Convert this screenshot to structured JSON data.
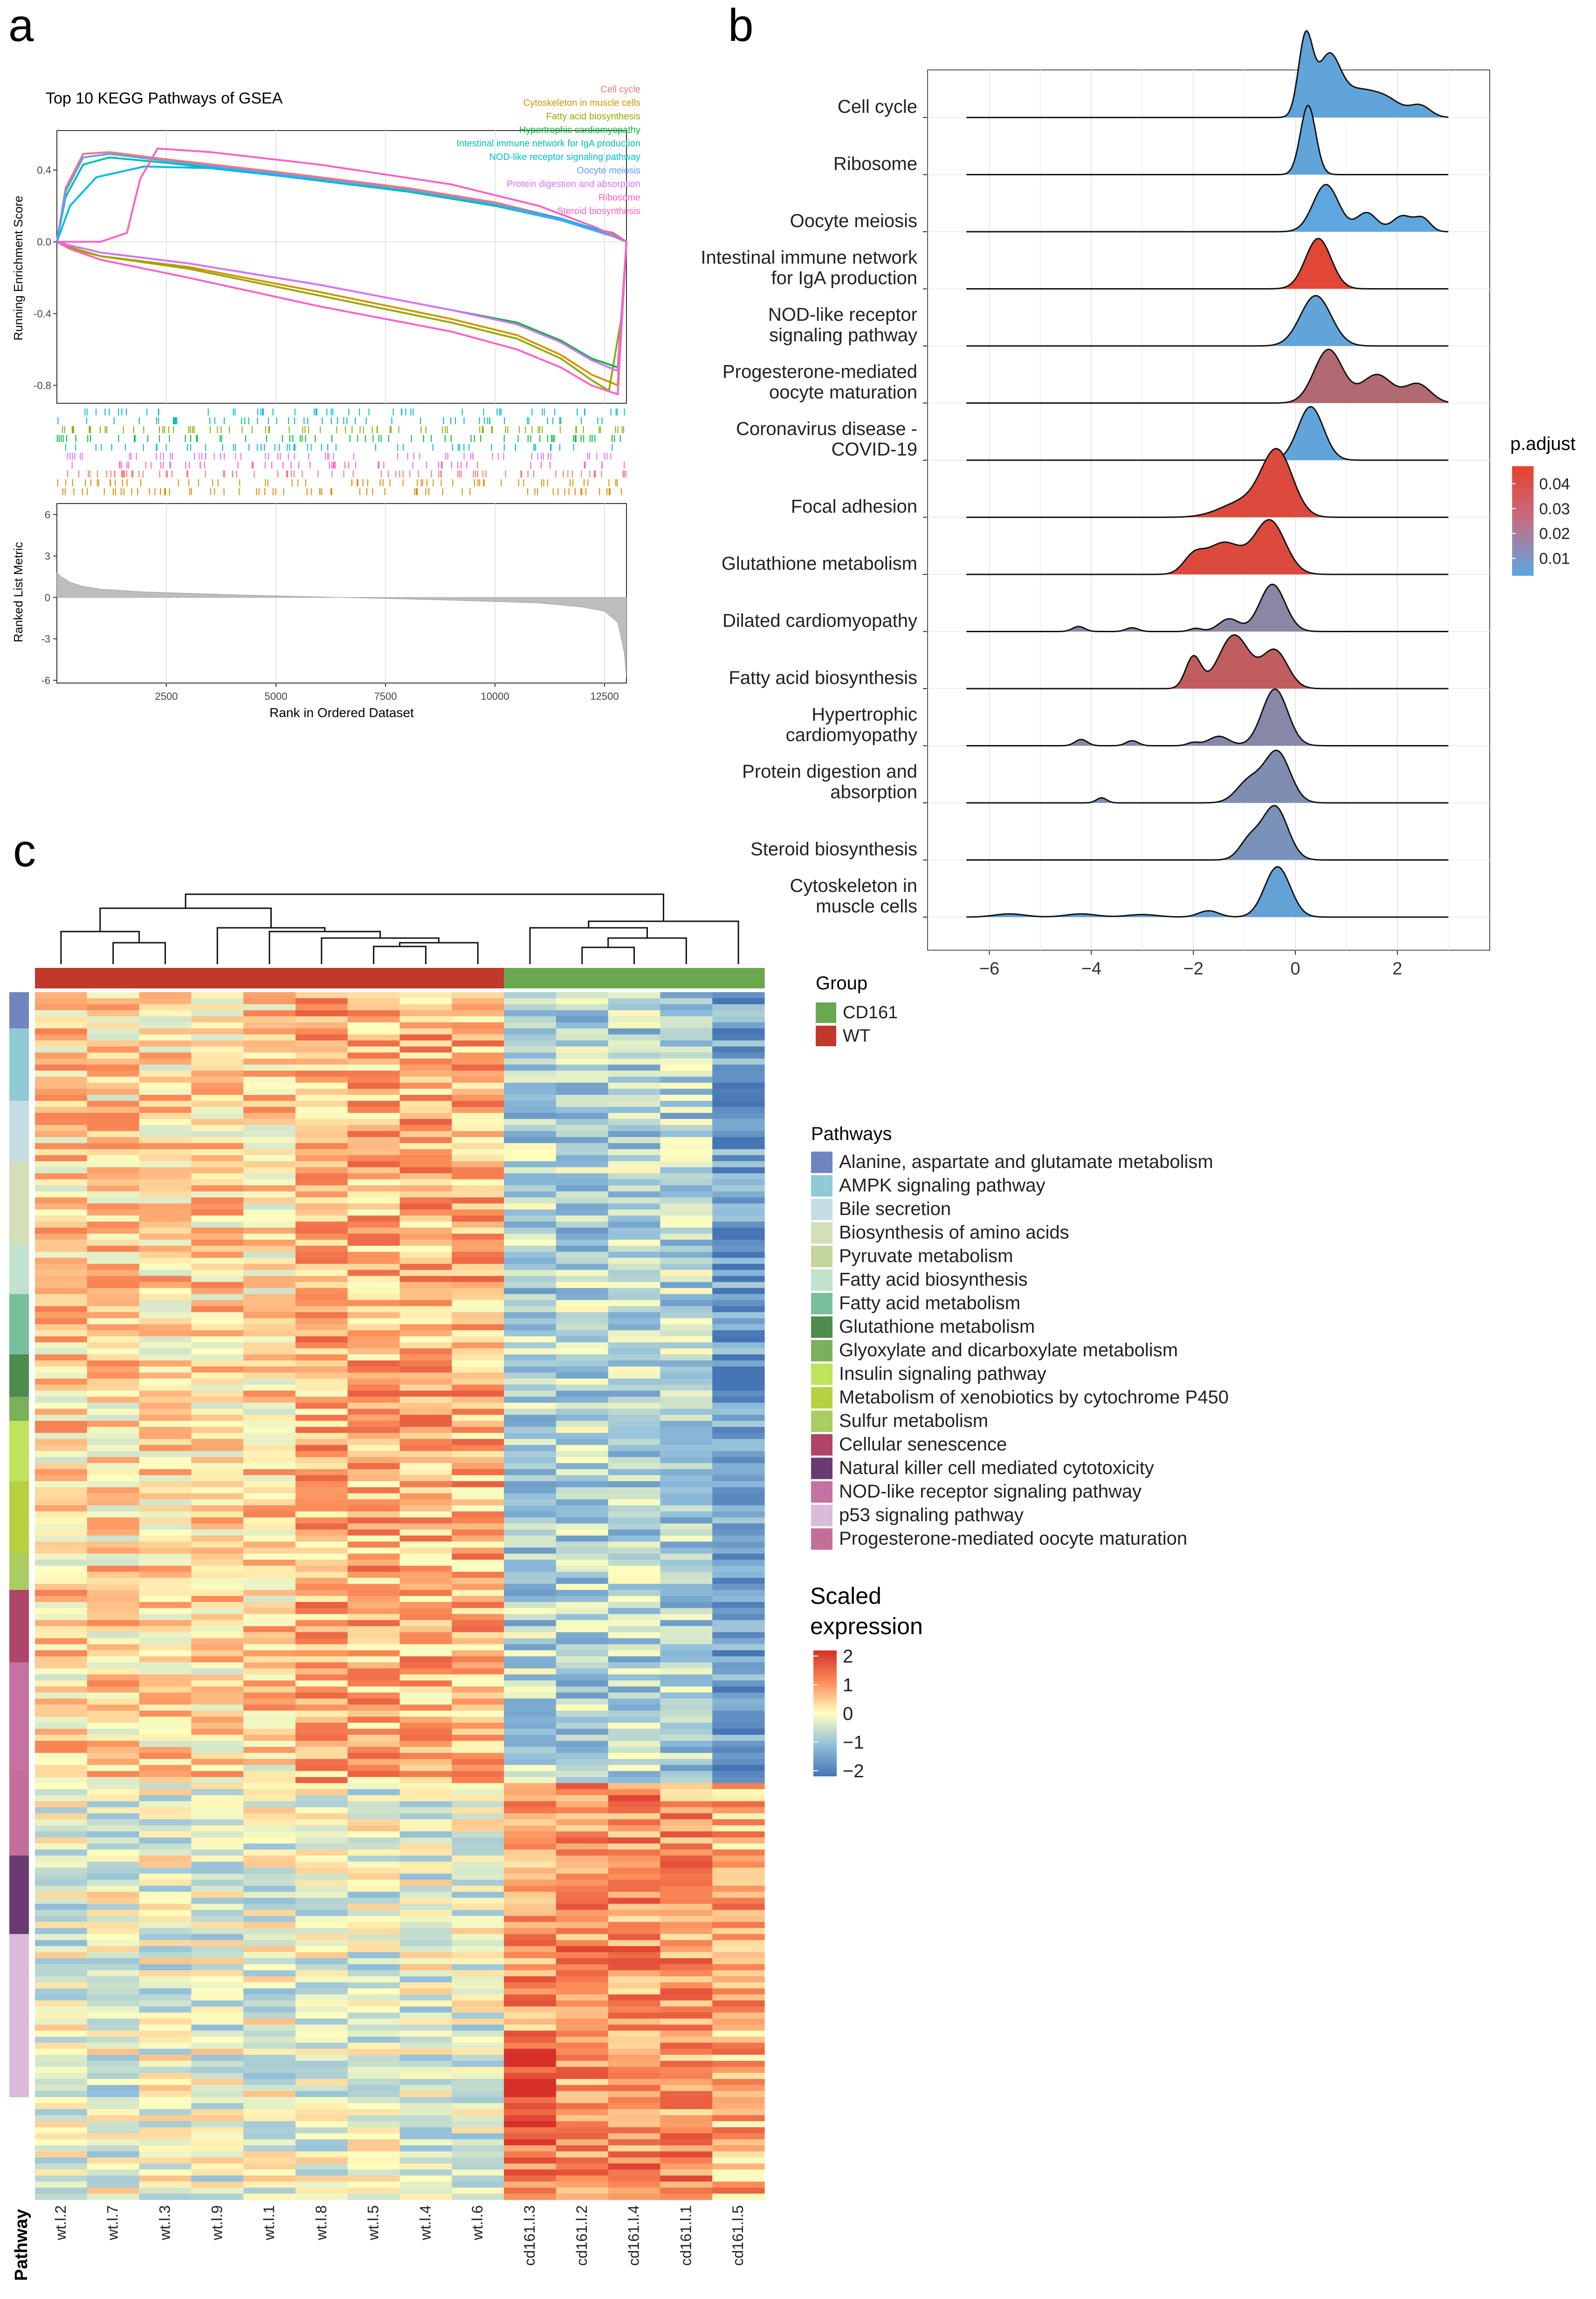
{
  "panel_labels": {
    "a": "a",
    "b": "b",
    "c": "c"
  },
  "chart_data": [
    {
      "id": "gsea",
      "type": "line",
      "title": "Top 10 KEGG Pathways of GSEA",
      "ylabel": "Running Enrichment Score",
      "ylim": [
        -0.9,
        0.62
      ],
      "yticks": [
        "0.4",
        "0.0",
        "-0.4",
        "-0.8"
      ],
      "xlim": [
        0,
        13000
      ],
      "series": [
        {
          "name": "Cell cycle",
          "color": "#f8766d",
          "x": [
            0,
            200,
            600,
            1200,
            2500,
            5000,
            8000,
            10000,
            11500,
            12300,
            12700,
            13000
          ],
          "y": [
            0,
            0.3,
            0.49,
            0.5,
            0.46,
            0.39,
            0.3,
            0.22,
            0.13,
            0.07,
            0.05,
            0
          ]
        },
        {
          "name": "Cytoskeleton in muscle cells",
          "color": "#d39200",
          "x": [
            0,
            300,
            1000,
            3000,
            6000,
            9000,
            10500,
            11500,
            12200,
            12800,
            13000
          ],
          "y": [
            0,
            -0.04,
            -0.08,
            -0.14,
            -0.28,
            -0.43,
            -0.52,
            -0.63,
            -0.74,
            -0.8,
            0
          ]
        },
        {
          "name": "Fatty acid biosynthesis",
          "color": "#93aa00",
          "x": [
            0,
            300,
            1000,
            3000,
            6000,
            9000,
            10500,
            11500,
            12200,
            12600,
            12900,
            13000
          ],
          "y": [
            0,
            -0.03,
            -0.08,
            -0.15,
            -0.3,
            -0.45,
            -0.54,
            -0.65,
            -0.77,
            -0.83,
            -0.4,
            0
          ]
        },
        {
          "name": "Hypertrophic cardiomyopathy",
          "color": "#00ba38",
          "x": [
            0,
            300,
            1000,
            3000,
            6000,
            9000,
            10500,
            11500,
            12200,
            12800,
            13000
          ],
          "y": [
            0,
            -0.02,
            -0.06,
            -0.12,
            -0.24,
            -0.38,
            -0.45,
            -0.55,
            -0.65,
            -0.7,
            0
          ]
        },
        {
          "name": "Intestinal immune network for IgA production",
          "color": "#00c19f",
          "x": [
            0,
            200,
            600,
            1200,
            2500,
            5000,
            8000,
            10000,
            11500,
            12300,
            12700,
            13000
          ],
          "y": [
            0,
            0.25,
            0.43,
            0.47,
            0.44,
            0.37,
            0.28,
            0.2,
            0.12,
            0.06,
            0.03,
            0
          ]
        },
        {
          "name": "NOD-like receptor signaling pathway",
          "color": "#00b9e3",
          "x": [
            0,
            300,
            900,
            2000,
            3500,
            5000,
            8000,
            10000,
            11500,
            12300,
            12700,
            13000
          ],
          "y": [
            0,
            0.2,
            0.36,
            0.42,
            0.41,
            0.37,
            0.29,
            0.21,
            0.13,
            0.07,
            0.04,
            0
          ]
        },
        {
          "name": "Oocyte meiosis",
          "color": "#619cff",
          "x": [
            0,
            200,
            600,
            1200,
            2500,
            5000,
            8000,
            10000,
            11500,
            12300,
            12700,
            13000
          ],
          "y": [
            0,
            0.28,
            0.47,
            0.49,
            0.45,
            0.38,
            0.29,
            0.21,
            0.12,
            0.06,
            0.03,
            0
          ]
        },
        {
          "name": "Protein digestion and absorption",
          "color": "#db72fb",
          "x": [
            0,
            300,
            1000,
            3000,
            6000,
            9000,
            10500,
            11500,
            12200,
            12800,
            13000
          ],
          "y": [
            0,
            -0.02,
            -0.06,
            -0.12,
            -0.24,
            -0.38,
            -0.46,
            -0.56,
            -0.66,
            -0.72,
            0
          ]
        },
        {
          "name": "Ribosome",
          "color": "#ff61c3",
          "x": [
            0,
            1000,
            1600,
            1900,
            2300,
            3500,
            6000,
            9000,
            11000,
            12300,
            13000
          ],
          "y": [
            0,
            0,
            0.05,
            0.35,
            0.52,
            0.5,
            0.43,
            0.32,
            0.2,
            0.08,
            0
          ]
        },
        {
          "name": "Steroid biosynthesis",
          "color": "#ff61c3",
          "x": [
            0,
            300,
            1000,
            3000,
            6000,
            9000,
            10500,
            11500,
            12200,
            12800,
            13000
          ],
          "y": [
            0,
            -0.04,
            -0.1,
            -0.2,
            -0.36,
            -0.5,
            -0.6,
            -0.7,
            -0.8,
            -0.85,
            0
          ]
        }
      ]
    },
    {
      "id": "ranked",
      "type": "area",
      "xlabel": "Rank in Ordered Dataset",
      "ylabel": "Ranked List Metric",
      "xticks": [
        2500,
        5000,
        7500,
        10000,
        12500
      ],
      "xlim": [
        0,
        13000
      ],
      "ylim": [
        -6.2,
        6.8
      ],
      "yticks": [
        6,
        3,
        0,
        -3,
        -6
      ],
      "x": [
        0,
        100,
        300,
        600,
        1000,
        2000,
        4000,
        6500,
        9000,
        11000,
        12000,
        12500,
        12800,
        12950,
        13000
      ],
      "y": [
        1.8,
        1.5,
        1.1,
        0.8,
        0.6,
        0.4,
        0.2,
        0,
        -0.2,
        -0.4,
        -0.7,
        -1,
        -1.8,
        -4,
        -5.8
      ]
    },
    {
      "id": "ridge",
      "type": "area",
      "legend_title": "p.adjust",
      "legend_ticks": [
        "0.04",
        "0.03",
        "0.02",
        "0.01"
      ],
      "legend_range": [
        0.003,
        0.047
      ],
      "xlim": [
        -6.8,
        3.4
      ],
      "xticks": [
        -6,
        -4,
        -2,
        0,
        2
      ],
      "rows": [
        {
          "label": "Cell cycle",
          "padj": 0.005,
          "peaks": [
            [
              0.2,
              0.14,
              1.25
            ],
            [
              0.65,
              0.22,
              0.9
            ],
            [
              1.2,
              0.35,
              0.4
            ],
            [
              1.8,
              0.3,
              0.25
            ],
            [
              2.45,
              0.2,
              0.18
            ]
          ]
        },
        {
          "label": "Ribosome",
          "padj": 0.005,
          "peaks": [
            [
              0.25,
              0.15,
              1.1
            ]
          ]
        },
        {
          "label": "Oocyte meiosis",
          "padj": 0.004,
          "peaks": [
            [
              0.6,
              0.25,
              0.75
            ],
            [
              1.4,
              0.2,
              0.3
            ],
            [
              2.1,
              0.2,
              0.25
            ],
            [
              2.5,
              0.15,
              0.2
            ]
          ]
        },
        {
          "label": "Intestinal immune network\nfor IgA production",
          "padj": 0.045,
          "peaks": [
            [
              0.45,
              0.25,
              0.8
            ]
          ]
        },
        {
          "label": "NOD-like receptor\nsignaling pathway",
          "padj": 0.005,
          "peaks": [
            [
              0.4,
              0.3,
              0.8
            ]
          ]
        },
        {
          "label": "Progesterone-mediated\noocyte maturation",
          "padj": 0.03,
          "peaks": [
            [
              0.65,
              0.28,
              0.85
            ],
            [
              1.6,
              0.3,
              0.45
            ],
            [
              2.4,
              0.25,
              0.3
            ]
          ]
        },
        {
          "label": "Coronavirus disease -\nCOVID-19",
          "padj": 0.005,
          "peaks": [
            [
              0.3,
              0.25,
              0.85
            ]
          ]
        },
        {
          "label": "Focal adhesion",
          "padj": 0.043,
          "peaks": [
            [
              -0.35,
              0.3,
              1.0
            ],
            [
              -1.0,
              0.45,
              0.25
            ]
          ]
        },
        {
          "label": "Glutathione metabolism",
          "padj": 0.043,
          "peaks": [
            [
              -0.5,
              0.3,
              0.85
            ],
            [
              -1.4,
              0.35,
              0.5
            ],
            [
              -2,
              0.2,
              0.25
            ]
          ]
        },
        {
          "label": "Dilated cardiomyopathy",
          "padj": 0.018,
          "peaks": [
            [
              -0.45,
              0.25,
              0.75
            ],
            [
              -1.3,
              0.2,
              0.2
            ],
            [
              -4.25,
              0.12,
              0.08
            ],
            [
              -3.2,
              0.12,
              0.06
            ],
            [
              -1.95,
              0.12,
              0.05
            ]
          ]
        },
        {
          "label": "Fatty acid biosynthesis",
          "padj": 0.035,
          "peaks": [
            [
              -1.2,
              0.3,
              0.85
            ],
            [
              -0.4,
              0.25,
              0.6
            ],
            [
              -2,
              0.15,
              0.5
            ]
          ]
        },
        {
          "label": "Hypertrophic\ncardiomyopathy",
          "padj": 0.017,
          "peaks": [
            [
              -0.4,
              0.25,
              0.9
            ],
            [
              -1.5,
              0.2,
              0.15
            ],
            [
              -4.2,
              0.12,
              0.1
            ],
            [
              -3.2,
              0.12,
              0.08
            ],
            [
              -2,
              0.12,
              0.05
            ]
          ]
        },
        {
          "label": "Protein digestion and\nabsorption",
          "padj": 0.015,
          "peaks": [
            [
              -0.35,
              0.25,
              0.8
            ],
            [
              -0.9,
              0.25,
              0.35
            ],
            [
              -3.8,
              0.1,
              0.08
            ]
          ]
        },
        {
          "label": "Steroid biosynthesis",
          "padj": 0.013,
          "peaks": [
            [
              -0.4,
              0.25,
              0.85
            ],
            [
              -0.9,
              0.2,
              0.3
            ]
          ]
        },
        {
          "label": "Cytoskeleton in\nmuscle cells",
          "padj": 0.006,
          "peaks": [
            [
              -0.35,
              0.25,
              0.8
            ],
            [
              -1.7,
              0.2,
              0.1
            ],
            [
              -5.6,
              0.3,
              0.05
            ],
            [
              -4.2,
              0.3,
              0.05
            ],
            [
              -3,
              0.3,
              0.04
            ]
          ]
        }
      ]
    },
    {
      "id": "heatmap",
      "type": "heatmap",
      "columns": [
        "wt.l.2",
        "wt.l.7",
        "wt.l.3",
        "wt.l.9",
        "wt.l.1",
        "wt.l.8",
        "wt.l.5",
        "wt.l.4",
        "wt.l.6",
        "cd161.l.3",
        "cd161.l.2",
        "cd161.l.4",
        "cd161.l.1",
        "cd161.l.5"
      ],
      "column_groups": [
        "WT",
        "WT",
        "WT",
        "WT",
        "WT",
        "WT",
        "WT",
        "WT",
        "WT",
        "CD161",
        "CD161",
        "CD161",
        "CD161",
        "CD161"
      ],
      "group_colors": {
        "CD161": "#6aa84f",
        "WT": "#c0392b"
      },
      "group_legend_title": "Group",
      "group_legend": [
        "CD161",
        "WT"
      ],
      "pathway_axis_label": "Pathway",
      "pathway_legend_title": "Pathways",
      "pathways": [
        {
          "name": "Alanine, aspartate and glutamate metabolism",
          "color": "#7085c0"
        },
        {
          "name": "AMPK signaling pathway",
          "color": "#8fcbd6"
        },
        {
          "name": "Bile secretion",
          "color": "#c3dde2"
        },
        {
          "name": "Biosynthesis of amino acids",
          "color": "#d3dfb6"
        },
        {
          "name": "Pyruvate metabolism",
          "color": "#c5d69c"
        },
        {
          "name": "Fatty acid biosynthesis",
          "color": "#bfe3cf"
        },
        {
          "name": "Fatty acid metabolism",
          "color": "#78bf9c"
        },
        {
          "name": "Glutathione metabolism",
          "color": "#4e8b4e"
        },
        {
          "name": "Glyoxylate and dicarboxylate metabolism",
          "color": "#7bb05c"
        },
        {
          "name": "Insulin signaling pathway",
          "color": "#bfe35a"
        },
        {
          "name": "Metabolism of xenobiotics by cytochrome P450",
          "color": "#b5d13f"
        },
        {
          "name": "Sulfur metabolism",
          "color": "#aacd63"
        },
        {
          "name": "Cellular senescence",
          "color": "#b0456a"
        },
        {
          "name": "Natural killer cell mediated cytotoxicity",
          "color": "#6a3b72"
        },
        {
          "name": "NOD-like receptor signaling pathway",
          "color": "#c571a1"
        },
        {
          "name": "p53 signaling pathway",
          "color": "#d9bcd9"
        },
        {
          "name": "Progesterone-mediated oocyte maturation",
          "color": "#c36f9a"
        }
      ],
      "sidebar_blocks": [
        {
          "pathway": 0,
          "frac": 0.03
        },
        {
          "pathway": 1,
          "frac": 0.06
        },
        {
          "pathway": 2,
          "frac": 0.05
        },
        {
          "pathway": 3,
          "frac": 0.07
        },
        {
          "pathway": 5,
          "frac": 0.04
        },
        {
          "pathway": 6,
          "frac": 0.05
        },
        {
          "pathway": 7,
          "frac": 0.035
        },
        {
          "pathway": 8,
          "frac": 0.02
        },
        {
          "pathway": 9,
          "frac": 0.05
        },
        {
          "pathway": 10,
          "frac": 0.06
        },
        {
          "pathway": 11,
          "frac": 0.03
        },
        {
          "pathway": 12,
          "frac": 0.06
        },
        {
          "pathway": 14,
          "frac": 0.09
        },
        {
          "pathway": 16,
          "frac": 0.07
        },
        {
          "pathway": 13,
          "frac": 0.065
        },
        {
          "pathway": 15,
          "frac": 0.135
        }
      ],
      "expression_legend_title": [
        "Scaled",
        "expression"
      ],
      "expression_ticks": [
        "2",
        "1",
        "0",
        "−1",
        "−2"
      ],
      "value_range": [
        -2,
        2
      ],
      "pattern": {
        "wt_high_fraction": 0.655,
        "rows": 200
      }
    }
  ]
}
